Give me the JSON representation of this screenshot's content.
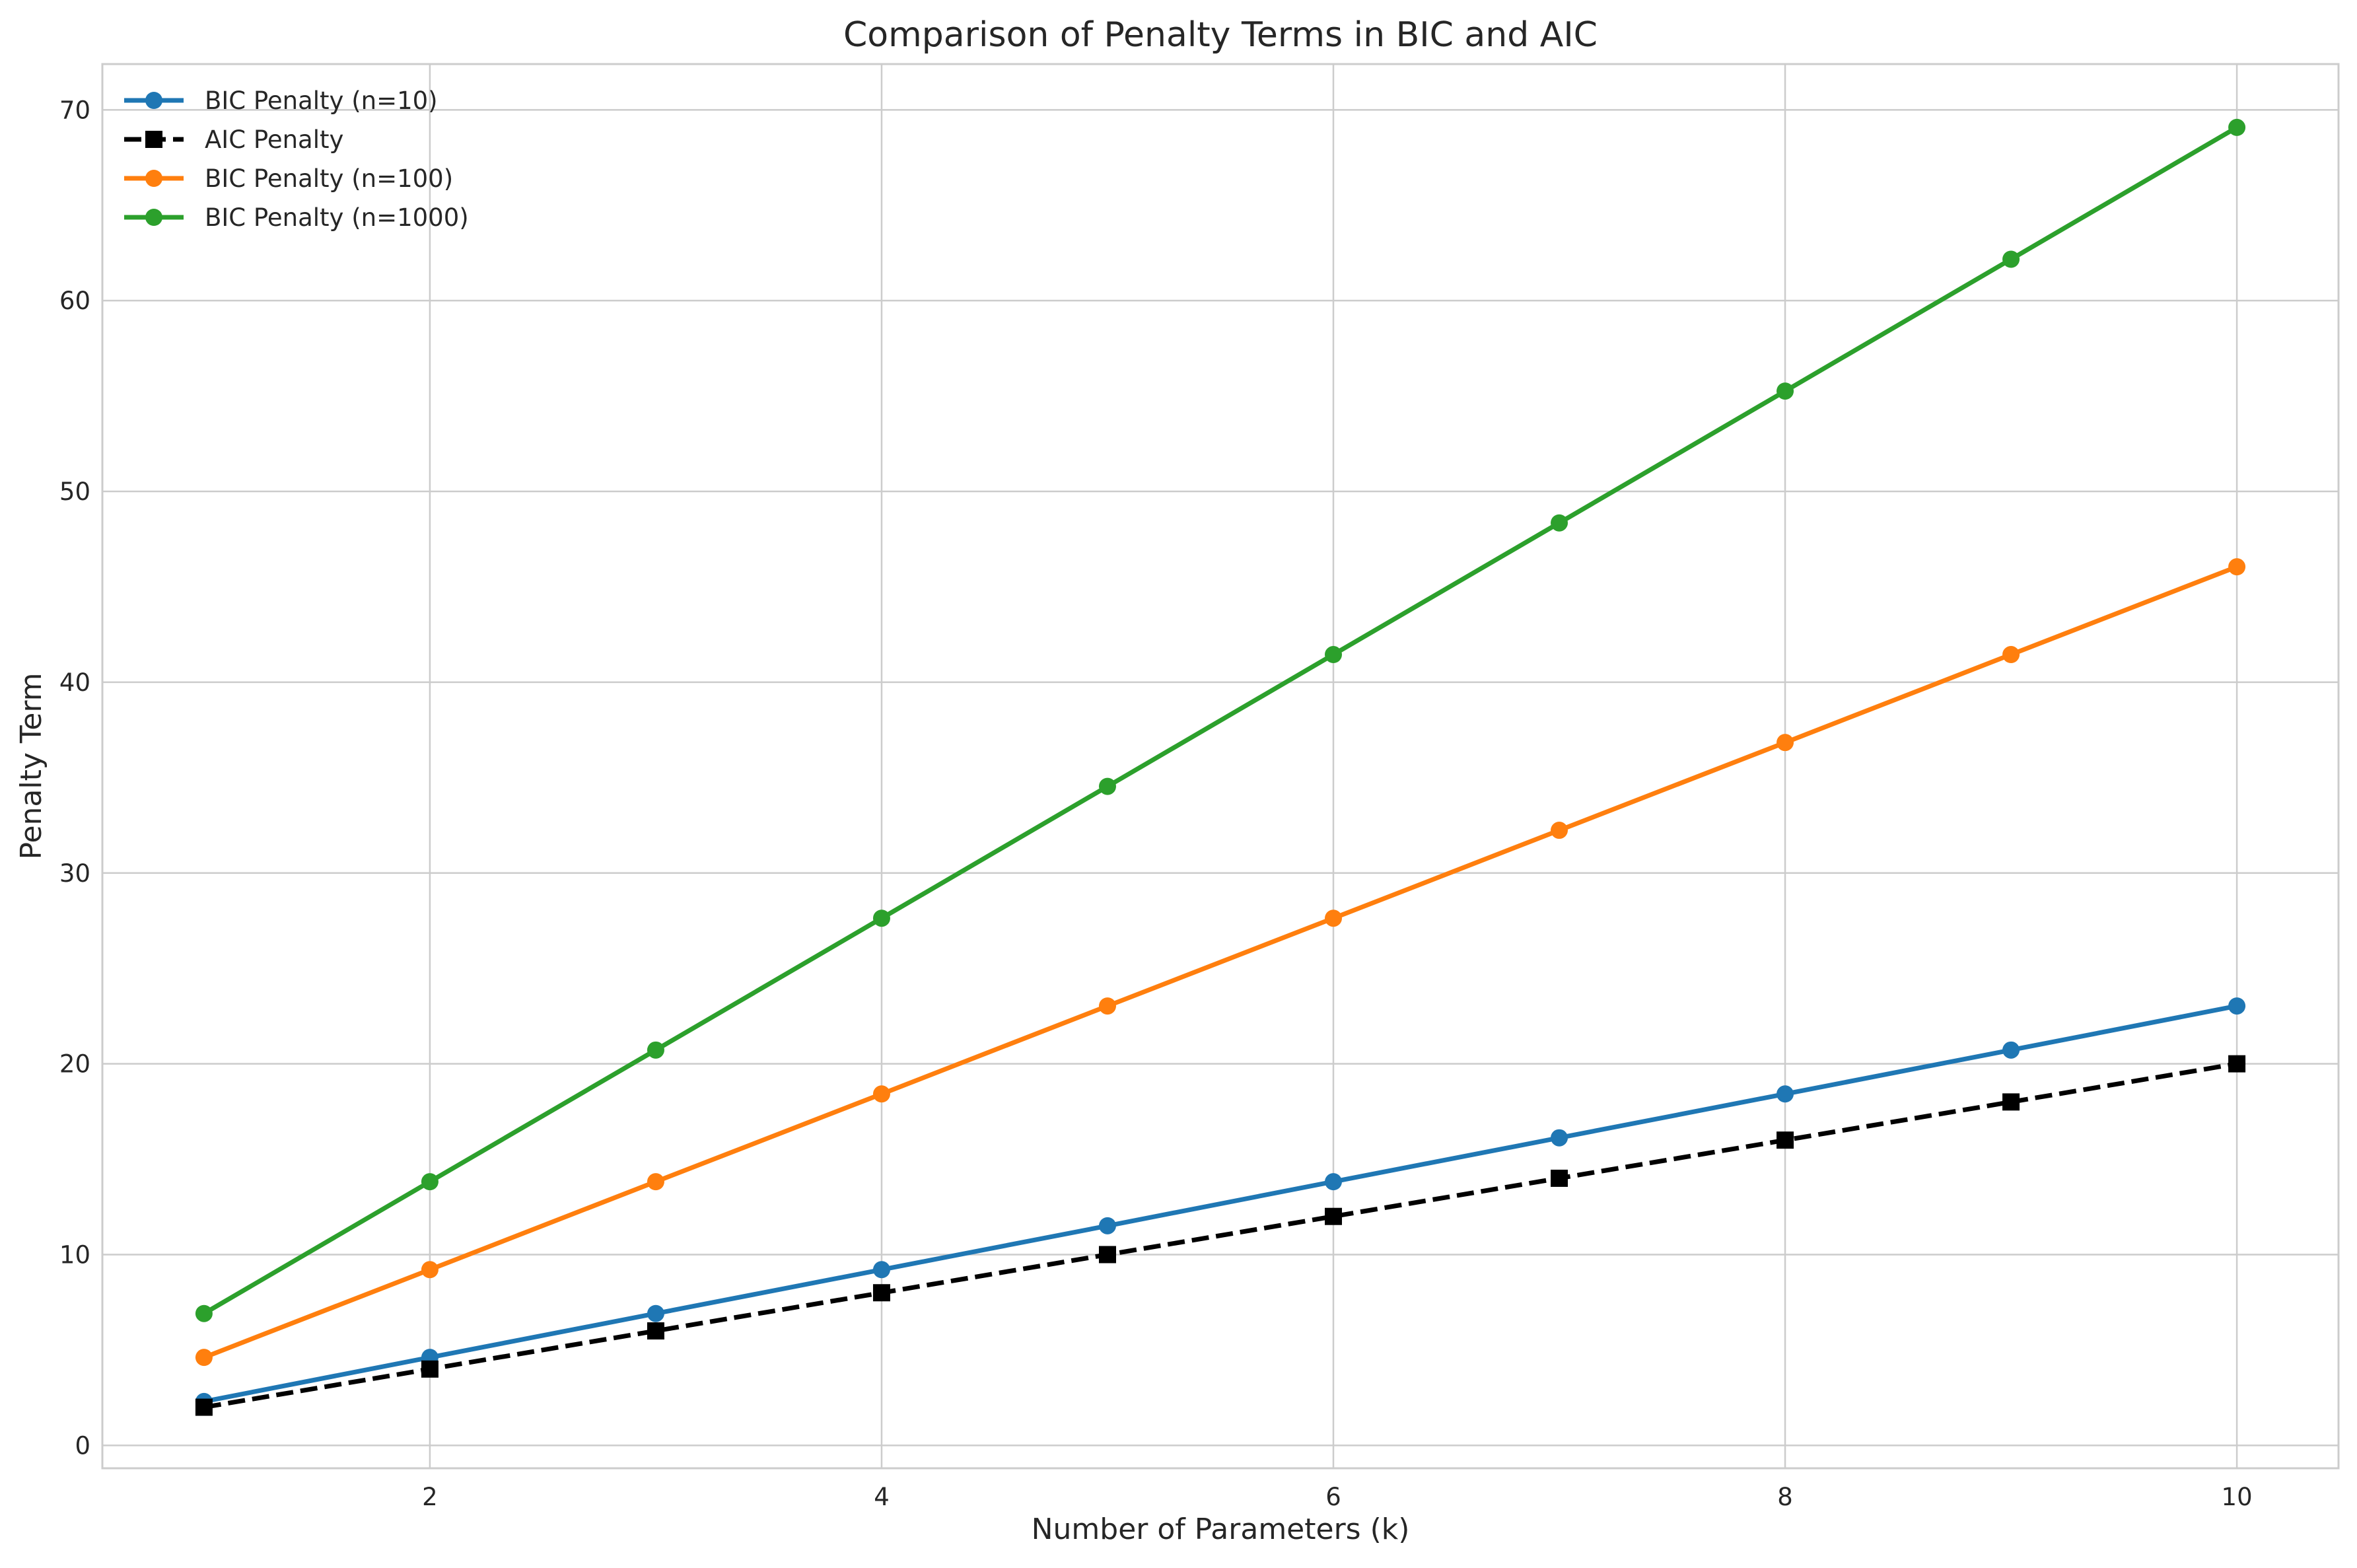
{
  "chart_data": {
    "type": "line",
    "title": "Comparison of Penalty Terms in BIC and AIC",
    "xlabel": "Number of Parameters (k)",
    "ylabel": "Penalty Term",
    "x": [
      1,
      2,
      3,
      4,
      5,
      6,
      7,
      8,
      9,
      10
    ],
    "xlim": [
      0.55,
      10.45
    ],
    "ylim": [
      -1.2,
      72.4
    ],
    "xticks": [
      2,
      4,
      6,
      8,
      10
    ],
    "yticks": [
      0,
      10,
      20,
      30,
      40,
      50,
      60,
      70
    ],
    "grid": true,
    "legend_position": "top-left",
    "series": [
      {
        "name": "BIC Penalty (n=10)",
        "color": "#1f77b4",
        "marker": "circle",
        "dash": "solid",
        "values": [
          2.3,
          4.61,
          6.91,
          9.21,
          11.51,
          13.82,
          16.12,
          18.42,
          20.72,
          23.03
        ]
      },
      {
        "name": "AIC Penalty",
        "color": "#000000",
        "marker": "square",
        "dash": "dashed",
        "values": [
          2,
          4,
          6,
          8,
          10,
          12,
          14,
          16,
          18,
          20
        ]
      },
      {
        "name": "BIC Penalty (n=100)",
        "color": "#ff7f0e",
        "marker": "circle",
        "dash": "solid",
        "values": [
          4.61,
          9.21,
          13.82,
          18.42,
          23.03,
          27.63,
          32.24,
          36.84,
          41.45,
          46.05
        ]
      },
      {
        "name": "BIC Penalty (n=1000)",
        "color": "#2ca02c",
        "marker": "circle",
        "dash": "solid",
        "values": [
          6.91,
          13.82,
          20.72,
          27.63,
          34.54,
          41.45,
          48.35,
          55.26,
          62.17,
          69.08
        ]
      }
    ]
  }
}
